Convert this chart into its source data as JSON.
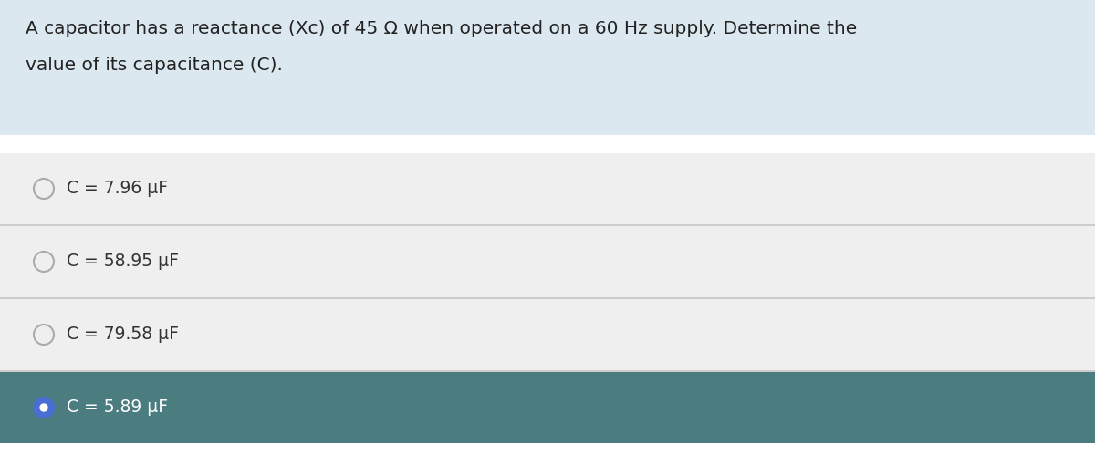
{
  "question_text_line1": "A capacitor has a reactance (Xc) of 45 Ω when operated on a 60 Hz supply. Determine the",
  "question_text_line2": "value of its capacitance (C).",
  "question_bg": "#dce8f0",
  "options": [
    {
      "label": "C = 7.96 μF",
      "selected": false
    },
    {
      "label": "C = 58.95 μF",
      "selected": false
    },
    {
      "label": "C = 79.58 μF",
      "selected": false
    },
    {
      "label": "C = 5.89 μF",
      "selected": true
    }
  ],
  "option_bg_unselected": "#efefef",
  "option_bg_selected": "#4a7c80",
  "divider_color": "#d0d0d0",
  "text_color_unselected": "#333333",
  "text_color_selected": "#ffffff",
  "circle_edge_unselected": "#aaaaaa",
  "radio_selected_fill": "#4a6fd4",
  "radio_selected_dot": "#ffffff",
  "fig_bg": "#ffffff",
  "font_size_question": 14.5,
  "font_size_option": 13.5,
  "fig_width": 12.0,
  "fig_height": 5.21,
  "dpi": 100
}
